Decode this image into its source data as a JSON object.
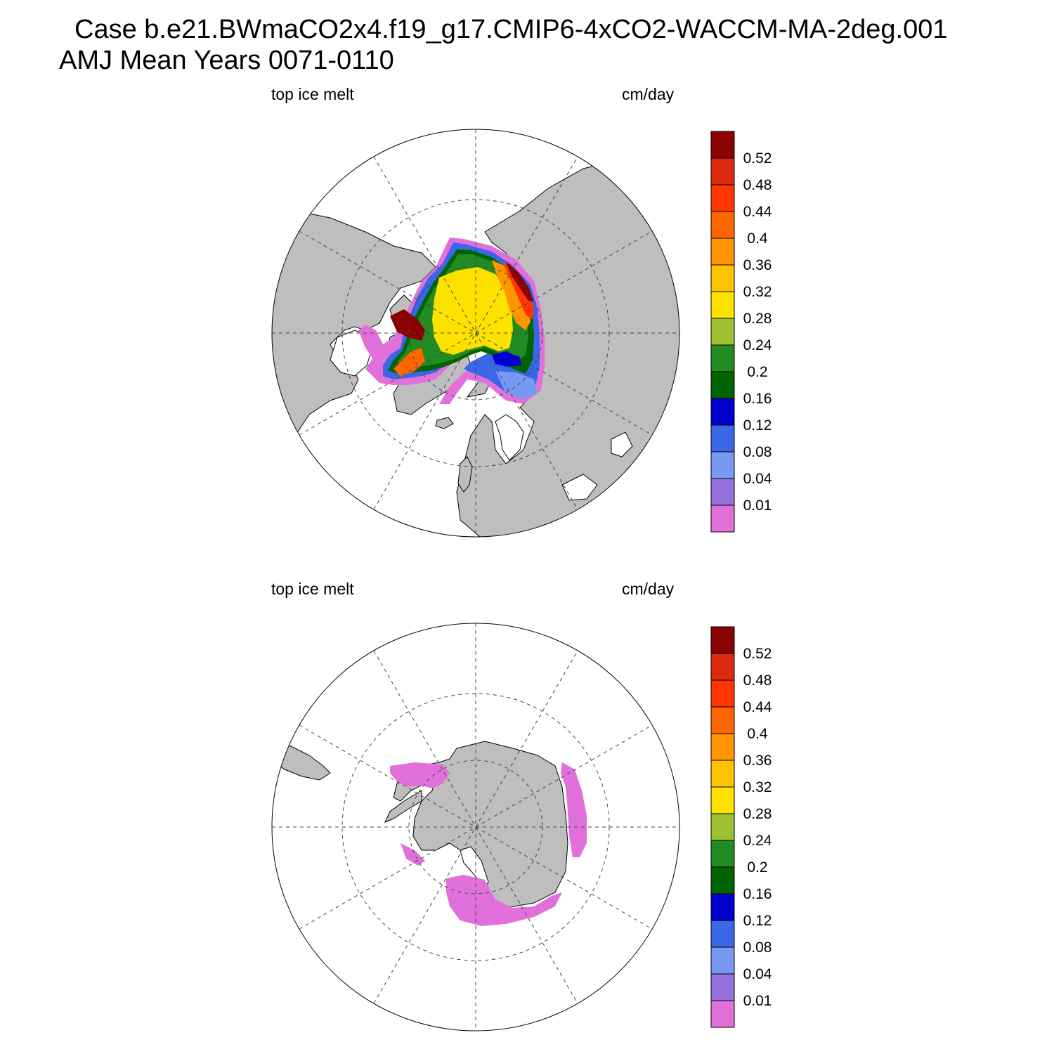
{
  "title": {
    "line1": "Case b.e21.BWmaCO2x4.f19_g17.CMIP6-4xCO2-WACCM-MA-2deg.001",
    "line2": "AMJ Mean   Years 0071-0110"
  },
  "panels": [
    {
      "id": "arctic",
      "hemisphere": "north",
      "left_label": "top ice melt",
      "right_label": "cm/day"
    },
    {
      "id": "antarctic",
      "hemisphere": "south",
      "left_label": "top ice melt",
      "right_label": "cm/day"
    }
  ],
  "colorbar": {
    "units": "cm/day",
    "levels": [
      "0.52",
      "0.48",
      "0.44",
      "0.4",
      "0.36",
      "0.32",
      "0.28",
      "0.24",
      "0.2",
      "0.16",
      "0.12",
      "0.08",
      "0.04",
      "0.01"
    ],
    "colors_top_to_bottom": [
      "#8b0000",
      "#dc2a10",
      "#ff3600",
      "#ff6600",
      "#ff9500",
      "#ffc200",
      "#ffe100",
      "#9dc230",
      "#228b22",
      "#006400",
      "#0000cd",
      "#3a66e8",
      "#7799f2",
      "#9370db",
      "#e270da"
    ]
  },
  "map": {
    "land_color": "#bebebe",
    "ocean_color": "#ffffff",
    "graticule": "dashed"
  }
}
